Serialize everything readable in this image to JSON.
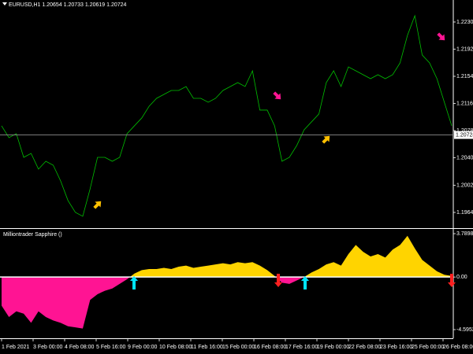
{
  "chart_data": [
    {
      "type": "line",
      "title": "EURUSD,H1 1.20654 1.20733 1.20619 1.20724",
      "color": "#00c000",
      "values": [
        1.20852,
        1.20687,
        1.20742,
        1.20411,
        1.20466,
        1.20246,
        1.20356,
        1.20301,
        1.20081,
        1.19806,
        1.19641,
        1.19586,
        1.19971,
        1.20411,
        1.20411,
        1.20356,
        1.20411,
        1.20742,
        1.20852,
        1.20962,
        1.21127,
        1.21237,
        1.21292,
        1.21347,
        1.21347,
        1.21402,
        1.21237,
        1.21237,
        1.21182,
        1.21237,
        1.21347,
        1.21402,
        1.21457,
        1.21402,
        1.21622,
        1.21072,
        1.21072,
        1.20852,
        1.20356,
        1.20411,
        1.20576,
        1.20797,
        1.20907,
        1.21017,
        1.21457,
        1.21622,
        1.21402,
        1.21677,
        1.21622,
        1.21567,
        1.21512,
        1.21567,
        1.21512,
        1.21567,
        1.21733,
        1.22118,
        1.22393,
        1.21843,
        1.21733,
        1.21512,
        1.21182,
        1.20852
      ],
      "current_price": 1.20724,
      "ylim": [
        1.1942,
        1.22613
      ],
      "yticks": [
        1.22305,
        1.21925,
        1.21545,
        1.21165,
        1.20785,
        1.20405,
        {
          "value": 1.2002,
          "label": "1.20020"
        },
        {
          "value": 1.1964,
          "label": "1.19640"
        }
      ]
    },
    {
      "type": "area",
      "title": "Milliontrader Sapphire ()",
      "color_positive": "#ffd400",
      "color_negative": "#ff1493",
      "values": [
        -2.5,
        -3.5,
        -3.0,
        -3.2,
        -4.0,
        -3.0,
        -3.5,
        -3.8,
        -4.0,
        -4.3,
        -4.4,
        -4.5,
        -2.0,
        -1.5,
        -1.2,
        -1.0,
        -0.6,
        -0.2,
        0.3,
        0.6,
        0.7,
        0.7,
        0.8,
        0.7,
        0.9,
        1.0,
        0.8,
        0.9,
        1.0,
        1.1,
        1.2,
        1.1,
        1.3,
        1.2,
        1.3,
        1.0,
        0.6,
        0.1,
        -0.5,
        -0.6,
        -0.3,
        0.0,
        0.4,
        0.7,
        1.1,
        1.3,
        1.0,
        2.0,
        2.8,
        2.2,
        1.8,
        2.0,
        1.7,
        2.4,
        2.8,
        3.6,
        2.5,
        1.5,
        1.0,
        0.5,
        0.2,
        0.1
      ],
      "ylim": [
        -4.59524,
        3.78985
      ],
      "yticks": [
        3.78985,
        {
          "value": 0,
          "label": "0.00"
        },
        -4.59524
      ],
      "x_labels": [
        "1 Feb 2021",
        "3 Feb 00:00",
        "4 Feb 08:00",
        "5 Feb 16:00",
        "9 Feb 00:00",
        "10 Feb 08:00",
        "11 Feb 16:00",
        "15 Feb 00:00",
        "16 Feb 08:00",
        "17 Feb 16:00",
        "19 Feb 00:00",
        "22 Feb 08:00",
        "23 Feb 16:00",
        "25 Feb 00:00",
        "26 Feb 08:00"
      ]
    }
  ]
}
